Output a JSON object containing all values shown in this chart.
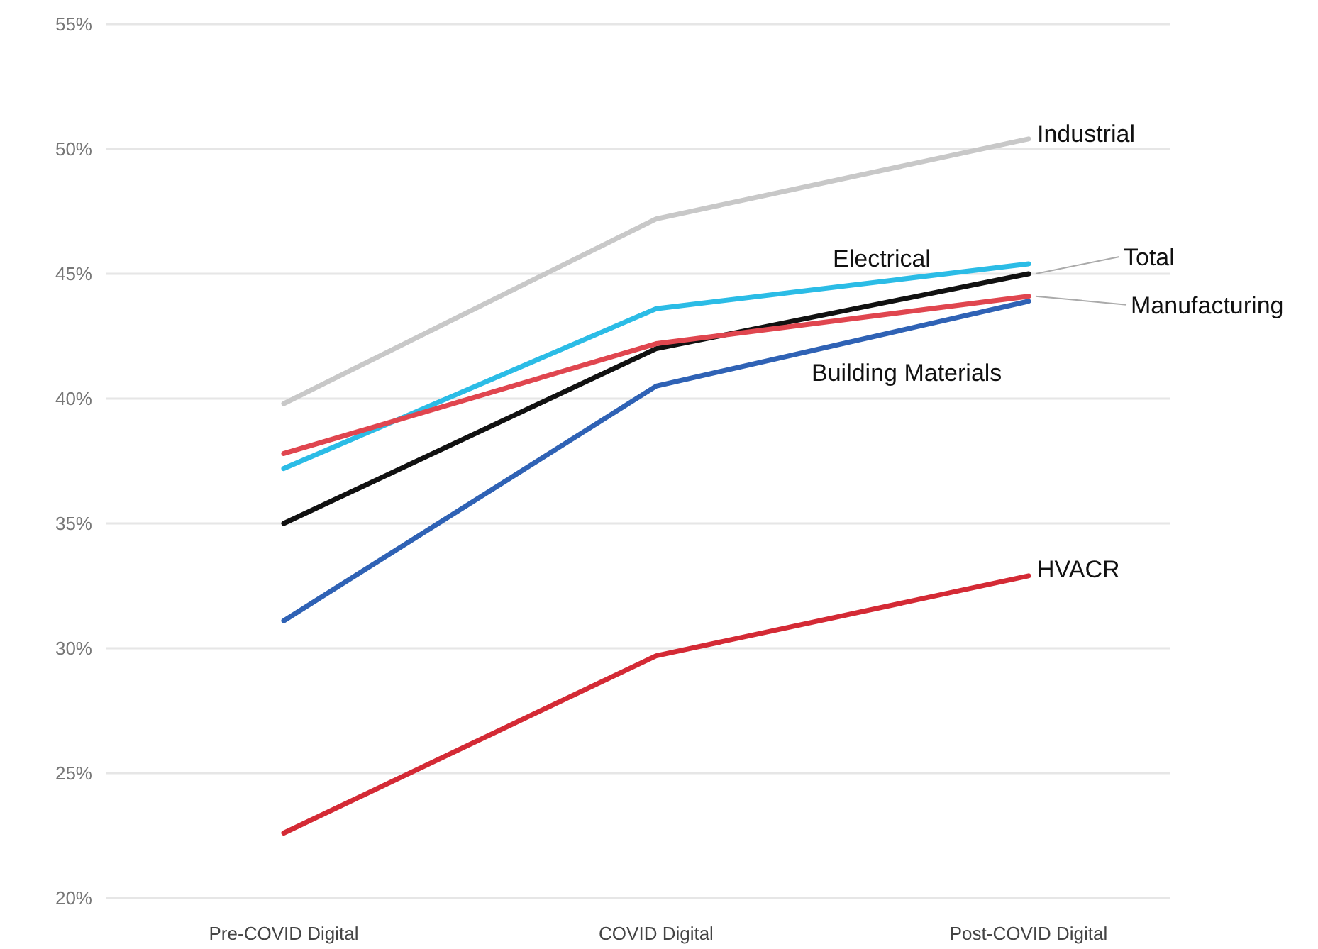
{
  "chart_data": {
    "type": "line",
    "categories": [
      "Pre-COVID Digital",
      "COVID Digital",
      "Post-COVID Digital"
    ],
    "ylim": [
      20,
      55
    ],
    "yticks": [
      {
        "value": 20,
        "label": "20%"
      },
      {
        "value": 25,
        "label": "25%"
      },
      {
        "value": 30,
        "label": "30%"
      },
      {
        "value": 35,
        "label": "35%"
      },
      {
        "value": 40,
        "label": "40%"
      },
      {
        "value": 45,
        "label": "45%"
      },
      {
        "value": 50,
        "label": "50%"
      },
      {
        "value": 55,
        "label": "55%"
      }
    ],
    "grid": "y",
    "marker": "none",
    "line_style": "solid",
    "series": [
      {
        "name": "Industrial",
        "color": "#c8c8c8",
        "values": [
          39.8,
          47.2,
          50.4
        ]
      },
      {
        "name": "Electrical",
        "color": "#2bbce6",
        "values": [
          37.2,
          43.6,
          45.4
        ]
      },
      {
        "name": "Total",
        "color": "#111111",
        "values": [
          35.0,
          42.0,
          45.0
        ]
      },
      {
        "name": "Manufacturing",
        "color": "#e0464f",
        "values": [
          37.8,
          42.2,
          44.1
        ]
      },
      {
        "name": "Building Materials",
        "color": "#2f62b5",
        "values": [
          31.1,
          40.5,
          43.9
        ]
      },
      {
        "name": "HVACR",
        "color": "#d42a35",
        "values": [
          22.6,
          29.7,
          32.9
        ]
      }
    ]
  }
}
